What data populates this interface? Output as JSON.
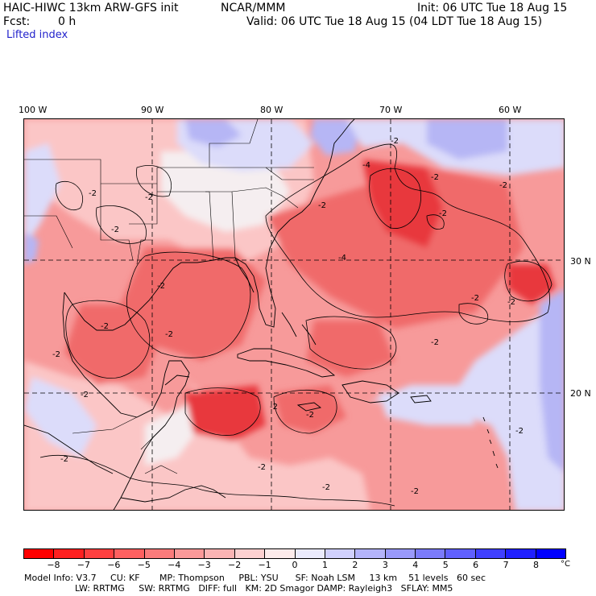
{
  "header": {
    "model": "HAIC-HIWC 13km ARW-GFS init",
    "org": "NCAR/MMM",
    "init": "Init: 06 UTC Tue 18 Aug 15",
    "fcst_label": "Fcst:",
    "fcst_value": "0 h",
    "valid": "Valid: 06 UTC Tue 18 Aug 15 (04 LDT Tue 18 Aug 15)",
    "field": "Lifted index"
  },
  "map": {
    "lon_labels": [
      "100 W",
      "90 W",
      "80 W",
      "70 W",
      "60 W"
    ],
    "lat_labels": [
      "30 N",
      "20 N"
    ],
    "contour_labels": [
      "-2",
      "-2",
      "-2",
      "-2",
      "-2",
      "-2",
      "-2",
      "-2",
      "-2",
      "-2",
      "-2",
      "-2",
      "-2",
      "-2",
      "-2",
      "-2",
      "-2",
      "-2",
      "-2",
      "-2",
      "-2",
      "-2",
      "-2",
      "-4",
      "-4"
    ],
    "colors": {
      "very_warm": "#e8393c",
      "warm": "#f06a6b",
      "mid_warm": "#f79a9a",
      "light_warm": "#fbc6c6",
      "neutral": "#f5eef0",
      "light_cool": "#dcdcfa",
      "mid_cool": "#b6b6f5",
      "cool": "#8d8ee9"
    }
  },
  "colorbar": {
    "ticks": [
      "−8",
      "−7",
      "−6",
      "−5",
      "−4",
      "−3",
      "−2",
      "−1",
      "0",
      "1",
      "2",
      "3",
      "4",
      "5",
      "6",
      "7",
      "8"
    ],
    "unit": "°C",
    "colors": [
      "#ff0000",
      "#ff2020",
      "#ff4040",
      "#ff6060",
      "#fb7b7b",
      "#fb9999",
      "#fbb4b4",
      "#fdd0d0",
      "#fdebeb",
      "#ebebfd",
      "#d0d0fd",
      "#b4b4fb",
      "#9999fb",
      "#7b7bfb",
      "#6060ff",
      "#4040ff",
      "#2020ff",
      "#0000ff"
    ]
  },
  "footer": {
    "line1": "Model Info: V3.7     CU: KF       MP: Thompson     PBL: YSU      SF: Noah LSM     13 km    51 levels   60 sec",
    "line2": "                  LW: RRTMG     SW: RRTMG   DIFF: full   KM: 2D Smagor DAMP: Rayleigh3   SFLAY: MM5"
  }
}
